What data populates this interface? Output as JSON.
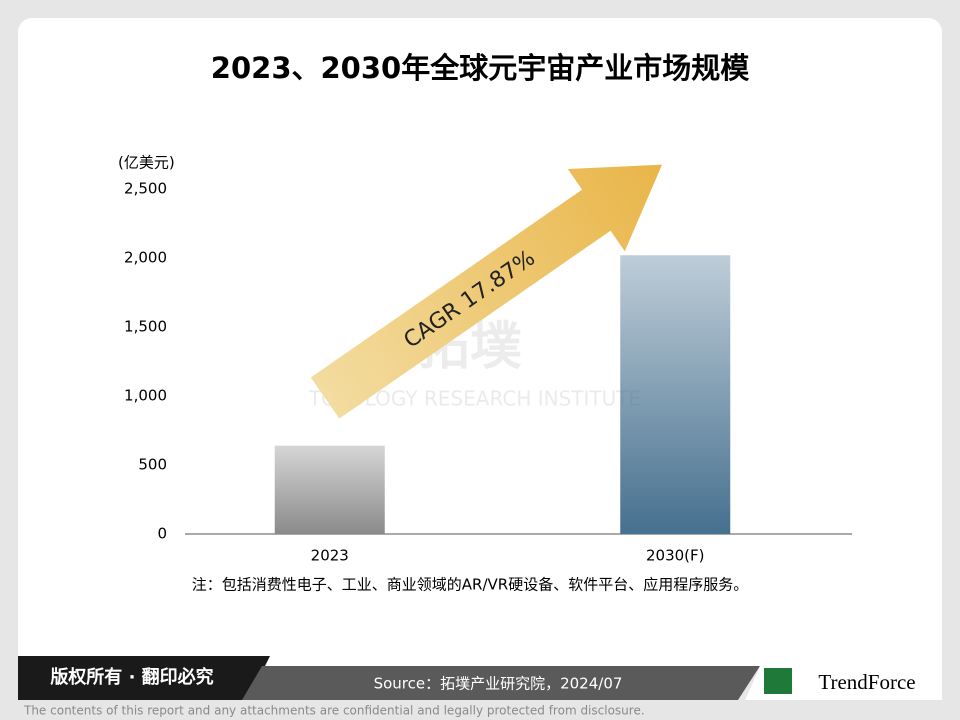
{
  "chart_data": {
    "type": "bar",
    "title": "2023、2030年全球元宇宙产业市场规模",
    "y_label": "(亿美元)",
    "categories": [
      "2023",
      "2030(F)"
    ],
    "values": [
      640,
      2020
    ],
    "colors": [
      "#8a8a8a",
      "#46708f"
    ],
    "ylim": [
      0,
      2500
    ],
    "yticks": [
      0,
      500,
      {
        "value": 1000,
        "label": "1,000"
      },
      {
        "value": 1500,
        "label": "1,500"
      },
      {
        "value": 2000,
        "label": "2,000"
      },
      {
        "value": 2500,
        "label": "2,500"
      }
    ],
    "grid": false,
    "annotation": "CAGR 17.87%",
    "note": "注：包括消费性电子、工业、商业领域的AR/VR硬设备、软件平台、应用程序服务。"
  },
  "watermark": {
    "logo": "拓墣",
    "text": "TOPOLOGY RESEARCH INSTITUTE"
  },
  "footer": {
    "rights": "版权所有 · 翻印必究",
    "source": "Source：拓墣产业研究院，2024/07",
    "brand": "TrendForce",
    "disclaimer": "The contents of this report and any attachments are confidential and legally protected from disclosure."
  }
}
